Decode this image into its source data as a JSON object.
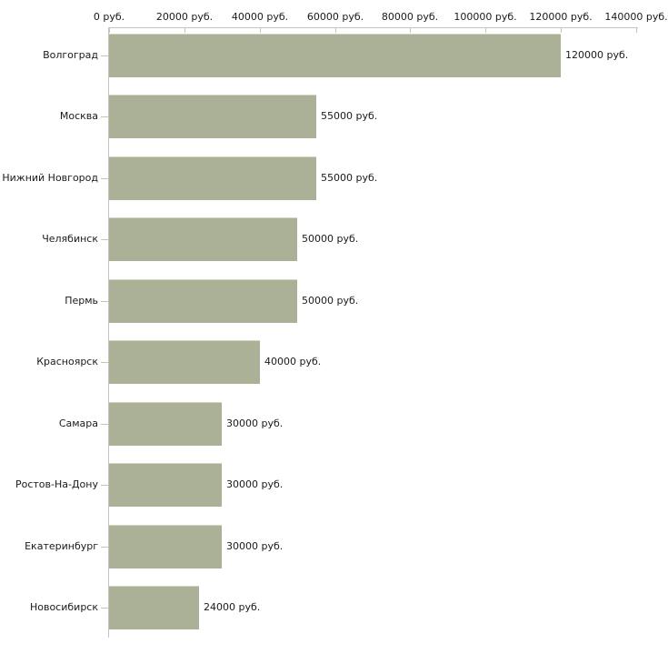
{
  "chart_data": {
    "type": "bar",
    "orientation": "horizontal",
    "title": "",
    "categories": [
      "Волгоград",
      "Москва",
      "Нижний Новгород",
      "Челябинск",
      "Пермь",
      "Красноярск",
      "Самара",
      "Ростов-На-Дону",
      "Екатеринбург",
      "Новосибирск"
    ],
    "values": [
      120000,
      55000,
      55000,
      50000,
      50000,
      40000,
      30000,
      30000,
      30000,
      24000
    ],
    "value_labels": [
      "120000 руб.",
      "55000 руб.",
      "55000 руб.",
      "50000 руб.",
      "50000 руб.",
      "40000 руб.",
      "30000 руб.",
      "30000 руб.",
      "30000 руб.",
      "24000 руб."
    ],
    "x_axis": {
      "position": "top",
      "unit": "руб.",
      "min": 0,
      "max": 140000,
      "tick_values": [
        0,
        20000,
        40000,
        60000,
        80000,
        100000,
        120000,
        140000
      ],
      "tick_labels": [
        "0 руб.",
        "20000 руб.",
        "40000 руб.",
        "60000 руб.",
        "80000 руб.",
        "100000 руб.",
        "120000 руб.",
        "140000 руб."
      ]
    },
    "grid": false,
    "legend": false,
    "colors": {
      "bar": "#abb197",
      "bar_top_edge": "#d2d6c0",
      "axis_line": "#c4c4c4",
      "tick": "#c6c6a3",
      "text": "#1a1a1a",
      "background": "#ffffff"
    }
  }
}
